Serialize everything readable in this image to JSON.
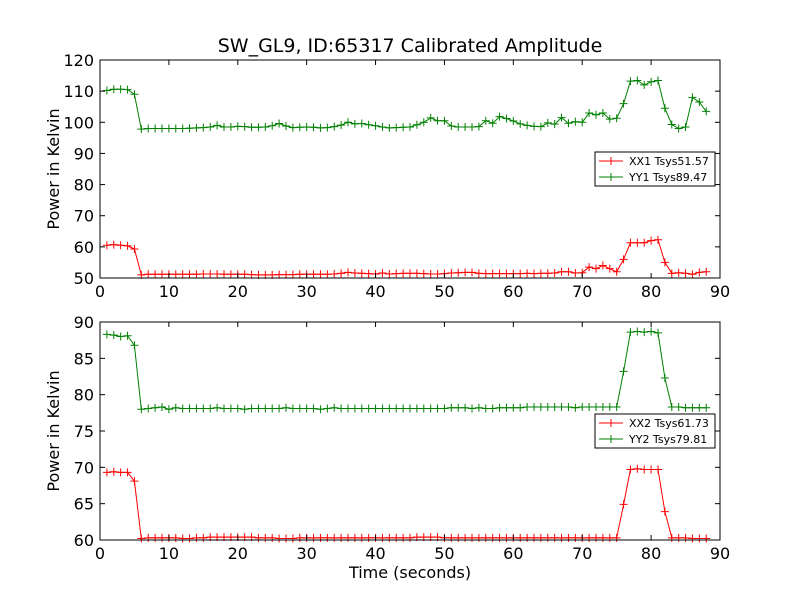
{
  "figure": {
    "title": "SW_GL9, ID:65317 Calibrated Amplitude",
    "xlabel": "Time (seconds)"
  },
  "chart_data": [
    {
      "type": "line",
      "ylabel": "Power in Kelvin",
      "xlim": [
        0,
        90
      ],
      "ylim": [
        50,
        120
      ],
      "xticks": [
        0,
        10,
        20,
        30,
        40,
        50,
        60,
        70,
        80,
        90
      ],
      "yticks": [
        50,
        60,
        70,
        80,
        90,
        100,
        110,
        120
      ],
      "legend_position": "center-right",
      "series": [
        {
          "name": "XX1 Tsys51.57",
          "color": "#ff0000",
          "marker": "plus",
          "x": [
            1,
            2,
            3,
            4,
            5,
            6,
            7,
            8,
            9,
            10,
            11,
            12,
            13,
            14,
            15,
            16,
            17,
            18,
            19,
            20,
            21,
            22,
            23,
            24,
            25,
            26,
            27,
            28,
            29,
            30,
            31,
            32,
            33,
            34,
            35,
            36,
            37,
            38,
            39,
            40,
            41,
            42,
            43,
            44,
            45,
            46,
            47,
            48,
            49,
            50,
            51,
            52,
            53,
            54,
            55,
            56,
            57,
            58,
            59,
            60,
            61,
            62,
            63,
            64,
            65,
            66,
            67,
            68,
            69,
            70,
            71,
            72,
            73,
            74,
            75,
            76,
            77,
            78,
            79,
            80,
            81,
            82,
            83,
            84,
            85,
            86,
            87,
            88
          ],
          "y": [
            60.5,
            60.7,
            60.5,
            60.3,
            59.3,
            51.0,
            51.2,
            51.2,
            51.2,
            51.2,
            51.2,
            51.2,
            51.2,
            51.2,
            51.3,
            51.3,
            51.3,
            51.2,
            51.2,
            51.2,
            51.2,
            51.1,
            51.0,
            51.0,
            51.0,
            51.1,
            51.1,
            51.1,
            51.2,
            51.2,
            51.2,
            51.2,
            51.2,
            51.3,
            51.5,
            51.8,
            51.6,
            51.5,
            51.4,
            51.3,
            51.6,
            51.3,
            51.4,
            51.5,
            51.5,
            51.5,
            51.4,
            51.3,
            51.3,
            51.4,
            51.6,
            51.7,
            51.8,
            51.8,
            51.5,
            51.4,
            51.4,
            51.4,
            51.4,
            51.4,
            51.4,
            51.5,
            51.4,
            51.5,
            51.5,
            51.6,
            52.0,
            52.0,
            51.6,
            51.7,
            53.5,
            53.0,
            54.0,
            53.0,
            52.0,
            56.0,
            61.3,
            61.3,
            61.3,
            62.0,
            62.3,
            55.0,
            51.5,
            51.7,
            51.5,
            51.2,
            51.8,
            52.0
          ]
        },
        {
          "name": "YY1 Tsys89.47",
          "color": "#008000",
          "marker": "plus",
          "x": [
            1,
            2,
            3,
            4,
            5,
            6,
            7,
            8,
            9,
            10,
            11,
            12,
            13,
            14,
            15,
            16,
            17,
            18,
            19,
            20,
            21,
            22,
            23,
            24,
            25,
            26,
            27,
            28,
            29,
            30,
            31,
            32,
            33,
            34,
            35,
            36,
            37,
            38,
            39,
            40,
            41,
            42,
            43,
            44,
            45,
            46,
            47,
            48,
            49,
            50,
            51,
            52,
            53,
            54,
            55,
            56,
            57,
            58,
            59,
            60,
            61,
            62,
            63,
            64,
            65,
            66,
            67,
            68,
            69,
            70,
            71,
            72,
            73,
            74,
            75,
            76,
            77,
            78,
            79,
            80,
            81,
            82,
            83,
            84,
            85,
            86,
            87,
            88
          ],
          "y": [
            110.2,
            110.6,
            110.6,
            110.5,
            109.0,
            97.8,
            98.0,
            98.0,
            98.0,
            98.0,
            98.0,
            98.0,
            98.1,
            98.2,
            98.3,
            98.5,
            99.0,
            98.5,
            98.5,
            98.7,
            98.6,
            98.4,
            98.4,
            98.5,
            98.9,
            99.6,
            98.8,
            98.3,
            98.4,
            98.5,
            98.4,
            98.2,
            98.3,
            98.6,
            99.1,
            100.0,
            99.5,
            99.6,
            99.2,
            98.9,
            98.5,
            98.2,
            98.3,
            98.4,
            98.5,
            99.2,
            100.0,
            101.4,
            100.5,
            100.5,
            98.8,
            98.5,
            98.5,
            98.5,
            98.6,
            100.5,
            99.7,
            101.8,
            101.2,
            100.4,
            99.5,
            99.0,
            98.7,
            98.6,
            99.8,
            99.4,
            101.5,
            99.7,
            100.2,
            100.0,
            103.0,
            102.4,
            103.0,
            101.0,
            101.3,
            106.0,
            113.2,
            113.4,
            112.0,
            113.0,
            113.4,
            104.5,
            99.3,
            98.0,
            98.5,
            108.0,
            106.5,
            103.5
          ]
        }
      ]
    },
    {
      "type": "line",
      "ylabel": "Power in Kelvin",
      "xlabel": "Time (seconds)",
      "xlim": [
        0,
        90
      ],
      "ylim": [
        60,
        90
      ],
      "xticks": [
        0,
        10,
        20,
        30,
        40,
        50,
        60,
        70,
        80,
        90
      ],
      "yticks": [
        60,
        65,
        70,
        75,
        80,
        85,
        90
      ],
      "legend_position": "center-right",
      "series": [
        {
          "name": "XX2 Tsys61.73",
          "color": "#ff0000",
          "marker": "plus",
          "x": [
            1,
            2,
            3,
            4,
            5,
            6,
            7,
            8,
            9,
            10,
            11,
            12,
            13,
            14,
            15,
            16,
            17,
            18,
            19,
            20,
            21,
            22,
            23,
            24,
            25,
            26,
            27,
            28,
            29,
            30,
            31,
            32,
            33,
            34,
            35,
            36,
            37,
            38,
            39,
            40,
            41,
            42,
            43,
            44,
            45,
            46,
            47,
            48,
            49,
            50,
            51,
            52,
            53,
            54,
            55,
            56,
            57,
            58,
            59,
            60,
            61,
            62,
            63,
            64,
            65,
            66,
            67,
            68,
            69,
            70,
            71,
            72,
            73,
            74,
            75,
            76,
            77,
            78,
            79,
            80,
            81,
            82,
            83,
            84,
            85,
            86,
            87,
            88
          ],
          "y": [
            69.3,
            69.4,
            69.3,
            69.3,
            68.1,
            60.2,
            60.3,
            60.3,
            60.3,
            60.3,
            60.3,
            60.2,
            60.2,
            60.3,
            60.3,
            60.4,
            60.4,
            60.4,
            60.4,
            60.4,
            60.4,
            60.4,
            60.3,
            60.3,
            60.3,
            60.2,
            60.2,
            60.2,
            60.3,
            60.3,
            60.3,
            60.3,
            60.3,
            60.3,
            60.3,
            60.3,
            60.3,
            60.3,
            60.3,
            60.3,
            60.3,
            60.3,
            60.3,
            60.3,
            60.3,
            60.4,
            60.4,
            60.4,
            60.4,
            60.3,
            60.3,
            60.3,
            60.3,
            60.3,
            60.3,
            60.3,
            60.3,
            60.3,
            60.3,
            60.3,
            60.3,
            60.3,
            60.3,
            60.3,
            60.3,
            60.3,
            60.3,
            60.3,
            60.3,
            60.3,
            60.3,
            60.3,
            60.3,
            60.3,
            60.3,
            64.9,
            69.7,
            69.8,
            69.7,
            69.7,
            69.7,
            63.9,
            60.3,
            60.3,
            60.3,
            60.2,
            60.2,
            60.2
          ]
        },
        {
          "name": "YY2 Tsys79.81",
          "color": "#008000",
          "marker": "plus",
          "x": [
            1,
            2,
            3,
            4,
            5,
            6,
            7,
            8,
            9,
            10,
            11,
            12,
            13,
            14,
            15,
            16,
            17,
            18,
            19,
            20,
            21,
            22,
            23,
            24,
            25,
            26,
            27,
            28,
            29,
            30,
            31,
            32,
            33,
            34,
            35,
            36,
            37,
            38,
            39,
            40,
            41,
            42,
            43,
            44,
            45,
            46,
            47,
            48,
            49,
            50,
            51,
            52,
            53,
            54,
            55,
            56,
            57,
            58,
            59,
            60,
            61,
            62,
            63,
            64,
            65,
            66,
            67,
            68,
            69,
            70,
            71,
            72,
            73,
            74,
            75,
            76,
            77,
            78,
            79,
            80,
            81,
            82,
            83,
            84,
            85,
            86,
            87,
            88
          ],
          "y": [
            88.3,
            88.2,
            88.0,
            88.1,
            86.8,
            78.0,
            78.1,
            78.2,
            78.3,
            78.0,
            78.2,
            78.1,
            78.1,
            78.1,
            78.1,
            78.1,
            78.2,
            78.1,
            78.1,
            78.1,
            78.0,
            78.1,
            78.1,
            78.1,
            78.1,
            78.1,
            78.2,
            78.1,
            78.1,
            78.1,
            78.1,
            78.0,
            78.1,
            78.2,
            78.1,
            78.1,
            78.1,
            78.1,
            78.1,
            78.1,
            78.1,
            78.1,
            78.1,
            78.1,
            78.1,
            78.1,
            78.1,
            78.1,
            78.1,
            78.1,
            78.2,
            78.2,
            78.2,
            78.1,
            78.2,
            78.1,
            78.1,
            78.2,
            78.2,
            78.2,
            78.2,
            78.3,
            78.3,
            78.3,
            78.3,
            78.3,
            78.3,
            78.3,
            78.2,
            78.3,
            78.3,
            78.3,
            78.3,
            78.3,
            78.3,
            83.2,
            88.6,
            88.7,
            88.6,
            88.7,
            88.5,
            82.3,
            78.3,
            78.3,
            78.2,
            78.2,
            78.2,
            78.2
          ]
        }
      ]
    }
  ]
}
